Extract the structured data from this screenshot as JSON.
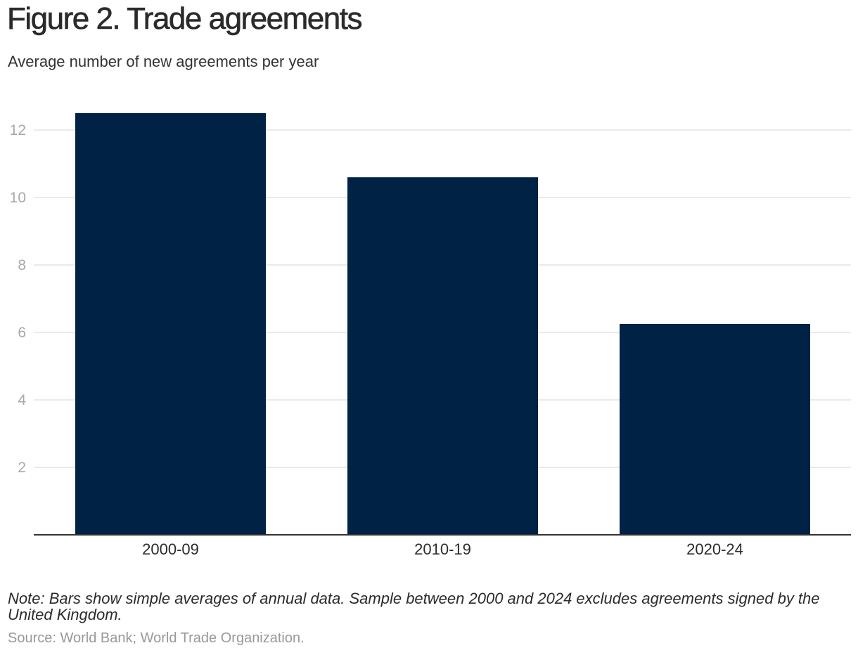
{
  "title": "Figure 2. Trade agreements",
  "subtitle": "Average number of new agreements per year",
  "note": "Note: Bars show simple averages of annual data. Sample between 2000 and 2024 excludes agreements signed by the United Kingdom.",
  "source": "Source: World Bank; World Trade Organization.",
  "colors": {
    "bar": "#002244",
    "grid": "#e3e3e3",
    "axis": "#333333"
  },
  "chart_data": {
    "type": "bar",
    "categories": [
      "2000-09",
      "2010-19",
      "2020-24"
    ],
    "values": [
      12.5,
      10.6,
      6.25
    ],
    "ylim": [
      0,
      12.5
    ],
    "yticks": [
      2,
      4,
      6,
      8,
      10,
      12
    ],
    "grid": true
  }
}
